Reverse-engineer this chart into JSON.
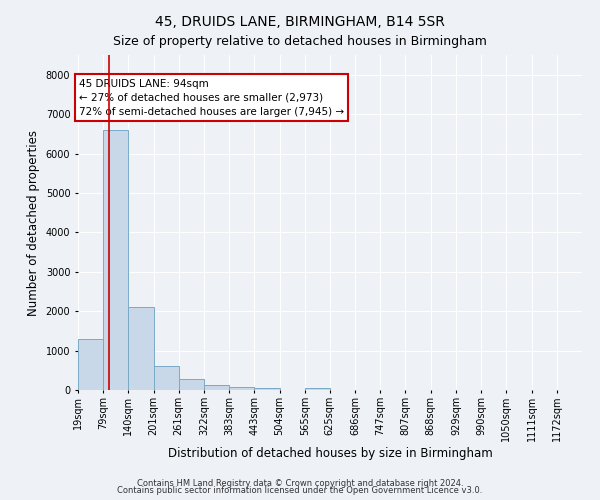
{
  "title1": "45, DRUIDS LANE, BIRMINGHAM, B14 5SR",
  "title2": "Size of property relative to detached houses in Birmingham",
  "xlabel": "Distribution of detached houses by size in Birmingham",
  "ylabel": "Number of detached properties",
  "footnote1": "Contains HM Land Registry data © Crown copyright and database right 2024.",
  "footnote2": "Contains public sector information licensed under the Open Government Licence v3.0.",
  "annotation_title": "45 DRUIDS LANE: 94sqm",
  "annotation_line1": "← 27% of detached houses are smaller (2,973)",
  "annotation_line2": "72% of semi-detached houses are larger (7,945) →",
  "bin_edges": [
    19,
    79,
    140,
    201,
    261,
    322,
    383,
    443,
    504,
    565,
    625,
    686,
    747,
    807,
    868,
    929,
    990,
    1050,
    1111,
    1172,
    1232
  ],
  "bar_heights": [
    1300,
    6600,
    2100,
    600,
    270,
    130,
    80,
    60,
    0,
    60,
    0,
    0,
    0,
    0,
    0,
    0,
    0,
    0,
    0,
    0
  ],
  "bar_color": "#c8d8e8",
  "bar_edgecolor": "#7aaac8",
  "redline_x": 94,
  "ylim": [
    0,
    8500
  ],
  "yticks": [
    0,
    1000,
    2000,
    3000,
    4000,
    5000,
    6000,
    7000,
    8000
  ],
  "background_color": "#eef2f7",
  "grid_color": "#ffffff",
  "annotation_box_color": "#ffffff",
  "annotation_box_edgecolor": "#cc0000",
  "redline_color": "#cc0000",
  "title1_fontsize": 10,
  "title2_fontsize": 9,
  "axis_label_fontsize": 8.5,
  "tick_fontsize": 7,
  "annotation_fontsize": 7.5,
  "footnote_fontsize": 6
}
